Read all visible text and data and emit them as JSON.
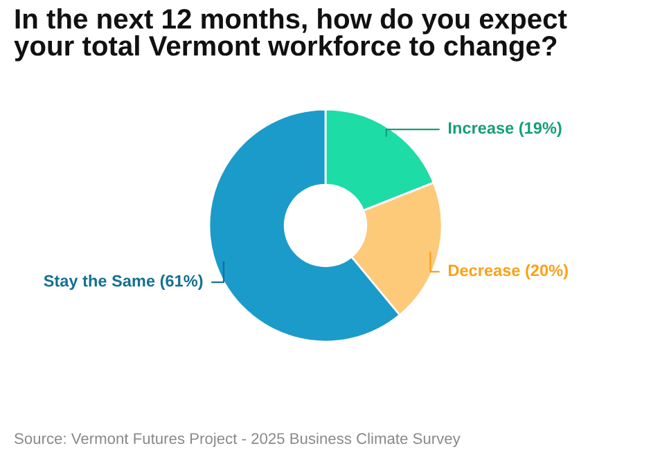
{
  "chart_data": {
    "type": "donut",
    "title": "In the next 12 months, how do you expect\nyour total Vermont workforce to change?",
    "categories": [
      "Increase",
      "Decrease",
      "Stay the Same"
    ],
    "values": [
      19,
      20,
      61
    ],
    "value_labels": [
      "(19%)",
      "(20%)",
      "(61%)"
    ],
    "colors": [
      "#1ddca6",
      "#fdca7a",
      "#1b9bca"
    ],
    "annotations": [
      "Source: Vermont Futures Project - 2025 Business Climate Survey"
    ],
    "legend": false
  }
}
